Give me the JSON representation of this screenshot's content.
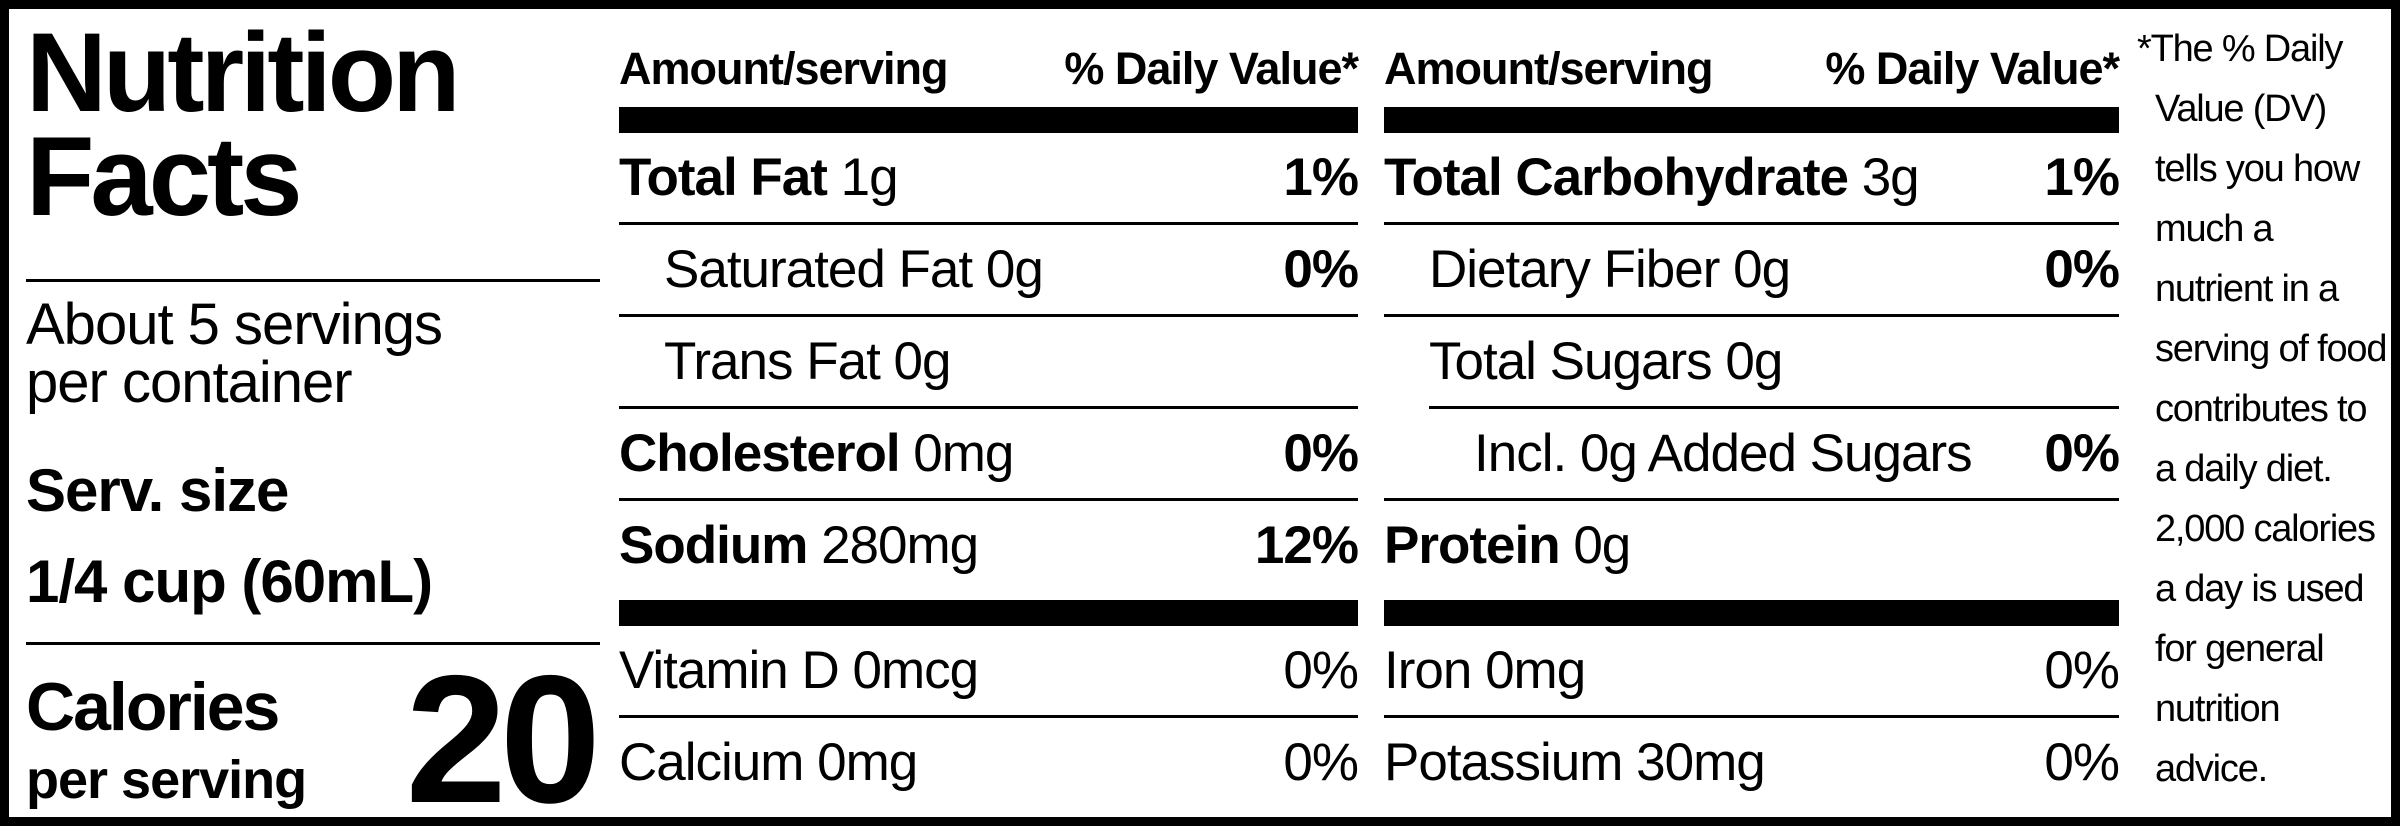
{
  "panel": {
    "title_lines": [
      "Nutrition",
      "Facts"
    ],
    "servings_line1": "About 5 servings",
    "servings_line2": "per container",
    "serving_size_label": "Serv. size",
    "serving_size_value": "1/4 cup (60mL)",
    "calories_label": "Calories",
    "calories_sublabel": "per serving",
    "calories_value": "20"
  },
  "tables": [
    {
      "amount_header": "Amount/serving",
      "dv_header": "% Daily Value*",
      "main_rows": [
        {
          "name": "Total Fat",
          "amount": "1g",
          "dv": "1%",
          "name_bold": true,
          "dv_bold": true,
          "indent": 0,
          "sep_indent": false
        },
        {
          "name": "Saturated Fat",
          "amount": "0g",
          "dv": "0%",
          "name_bold": false,
          "dv_bold": true,
          "indent": 1,
          "sep_indent": false
        },
        {
          "name": "Trans Fat",
          "amount": "0g",
          "dv": "",
          "name_bold": false,
          "dv_bold": true,
          "indent": 1,
          "sep_indent": false
        },
        {
          "name": "Cholesterol",
          "amount": "0mg",
          "dv": "0%",
          "name_bold": true,
          "dv_bold": true,
          "indent": 0,
          "sep_indent": false
        },
        {
          "name": "Sodium",
          "amount": "280mg",
          "dv": "12%",
          "name_bold": true,
          "dv_bold": true,
          "indent": 0,
          "sep_indent": false
        }
      ],
      "micro_rows": [
        {
          "name": "Vitamin D",
          "amount": "0mcg",
          "dv": "0%"
        },
        {
          "name": "Calcium",
          "amount": "0mg",
          "dv": "0%"
        }
      ]
    },
    {
      "amount_header": "Amount/serving",
      "dv_header": "% Daily Value*",
      "main_rows": [
        {
          "name": "Total Carbohydrate",
          "amount": "3g",
          "dv": "1%",
          "name_bold": true,
          "dv_bold": true,
          "indent": 0,
          "sep_indent": false
        },
        {
          "name": "Dietary Fiber",
          "amount": "0g",
          "dv": "0%",
          "name_bold": false,
          "dv_bold": true,
          "indent": 1,
          "sep_indent": false
        },
        {
          "name": "Total Sugars",
          "amount": "0g",
          "dv": "",
          "name_bold": false,
          "dv_bold": true,
          "indent": 1,
          "sep_indent": false
        },
        {
          "name": "Incl. 0g Added Sugars",
          "amount": "",
          "dv": "0%",
          "name_bold": false,
          "dv_bold": true,
          "indent": 2,
          "sep_indent": true
        },
        {
          "name": "Protein",
          "amount": "0g",
          "dv": "",
          "name_bold": true,
          "dv_bold": true,
          "indent": 0,
          "sep_indent": false
        }
      ],
      "micro_rows": [
        {
          "name": "Iron",
          "amount": "0mg",
          "dv": "0%"
        },
        {
          "name": "Potassium",
          "amount": "30mg",
          "dv": "0%"
        }
      ]
    }
  ],
  "footnote_lines": [
    "*The % Daily",
    "Value (DV)",
    "tells you how",
    "much a",
    "nutrient in a",
    "serving of food",
    "contributes to",
    "a daily diet.",
    "2,000 calories",
    "a day is used",
    "for general",
    "nutrition",
    "advice."
  ],
  "colors": {
    "ink": "#000000",
    "paper": "#ffffff"
  }
}
